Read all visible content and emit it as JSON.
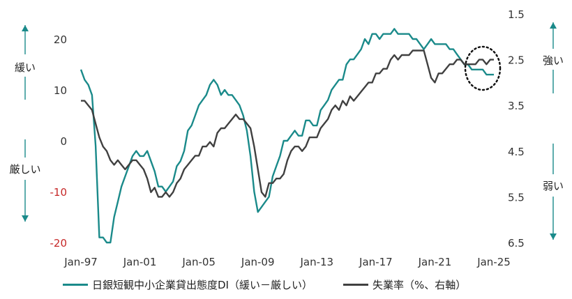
{
  "chart_data": {
    "type": "line",
    "x_ticks": [
      "Jan-97",
      "Jan-01",
      "Jan-05",
      "Jan-09",
      "Jan-13",
      "Jan-17",
      "Jan-21",
      "Jan-25"
    ],
    "left_axis": {
      "ylim": [
        -20,
        25
      ],
      "ticks": [
        "20",
        "10",
        "0",
        "-10",
        "-20"
      ]
    },
    "right_axis": {
      "ylim": [
        1.5,
        6.5
      ],
      "reversed": true,
      "ticks": [
        "1.5",
        "2.5",
        "3.5",
        "4.5",
        "5.5",
        "6.5"
      ]
    },
    "annotations": {
      "left_up": "緩い",
      "left_down": "厳しい",
      "right_up": "強い",
      "right_down": "弱い"
    },
    "highlight": "dotted-circle",
    "series": [
      {
        "name": "日銀短観中小企業貸出態度DI（緩い－厳しい）",
        "axis": "left",
        "color": "#1a8a8a",
        "x": [
          1997.0,
          1997.25,
          1997.5,
          1997.75,
          1998.0,
          1998.25,
          1998.5,
          1998.75,
          1999.0,
          1999.25,
          1999.5,
          1999.75,
          2000.0,
          2000.25,
          2000.5,
          2000.75,
          2001.0,
          2001.25,
          2001.5,
          2001.75,
          2002.0,
          2002.25,
          2002.5,
          2002.75,
          2003.0,
          2003.25,
          2003.5,
          2003.75,
          2004.0,
          2004.25,
          2004.5,
          2004.75,
          2005.0,
          2005.25,
          2005.5,
          2005.75,
          2006.0,
          2006.25,
          2006.5,
          2006.75,
          2007.0,
          2007.25,
          2007.5,
          2007.75,
          2008.0,
          2008.25,
          2008.5,
          2008.75,
          2009.0,
          2009.25,
          2009.5,
          2009.75,
          2010.0,
          2010.25,
          2010.5,
          2010.75,
          2011.0,
          2011.25,
          2011.5,
          2011.75,
          2012.0,
          2012.25,
          2012.5,
          2012.75,
          2013.0,
          2013.25,
          2013.5,
          2013.75,
          2014.0,
          2014.25,
          2014.5,
          2014.75,
          2015.0,
          2015.25,
          2015.5,
          2015.75,
          2016.0,
          2016.25,
          2016.5,
          2016.75,
          2017.0,
          2017.25,
          2017.5,
          2017.75,
          2018.0,
          2018.25,
          2018.5,
          2018.75,
          2019.0,
          2019.25,
          2019.5,
          2019.75,
          2020.0,
          2020.25,
          2020.5,
          2020.75,
          2021.0,
          2021.25,
          2021.5,
          2021.75,
          2022.0,
          2022.25,
          2022.5,
          2022.75,
          2023.0,
          2023.25,
          2023.5,
          2023.75,
          2024.0,
          2024.25,
          2024.5,
          2024.75,
          2025.0
        ],
        "values": [
          14,
          12,
          11,
          9,
          -1,
          -19,
          -19,
          -20,
          -20,
          -15,
          -12,
          -9,
          -7,
          -5,
          -3,
          -2,
          -3,
          -3,
          -2,
          -4,
          -6,
          -9,
          -9,
          -10,
          -9,
          -8,
          -5,
          -4,
          -2,
          2,
          3,
          5,
          7,
          8,
          9,
          11,
          12,
          11,
          9,
          10,
          9,
          9,
          8,
          7,
          5,
          2,
          -3,
          -10,
          -14,
          -13,
          -12,
          -11,
          -7,
          -5,
          -3,
          0,
          0,
          1,
          2,
          1,
          1,
          4,
          4,
          3,
          3,
          6,
          7,
          8,
          10,
          11,
          12,
          12,
          15,
          16,
          16,
          17,
          18,
          20,
          19,
          21,
          21,
          20,
          21,
          21,
          21,
          22,
          21,
          21,
          21,
          21,
          20,
          20,
          19,
          18,
          19,
          20,
          19,
          19,
          19,
          19,
          18,
          18,
          17,
          16,
          15,
          15,
          14,
          14,
          14,
          14,
          13,
          13,
          13
        ],
        "values_unit": "DI"
      },
      {
        "name": "失業率（%、右軸）",
        "axis": "right",
        "color": "#404040",
        "x": [
          1997.0,
          1997.25,
          1997.5,
          1997.75,
          1998.0,
          1998.25,
          1998.5,
          1998.75,
          1999.0,
          1999.25,
          1999.5,
          1999.75,
          2000.0,
          2000.25,
          2000.5,
          2000.75,
          2001.0,
          2001.25,
          2001.5,
          2001.75,
          2002.0,
          2002.25,
          2002.5,
          2002.75,
          2003.0,
          2003.25,
          2003.5,
          2003.75,
          2004.0,
          2004.25,
          2004.5,
          2004.75,
          2005.0,
          2005.25,
          2005.5,
          2005.75,
          2006.0,
          2006.25,
          2006.5,
          2006.75,
          2007.0,
          2007.25,
          2007.5,
          2007.75,
          2008.0,
          2008.25,
          2008.5,
          2008.75,
          2009.0,
          2009.25,
          2009.5,
          2009.75,
          2010.0,
          2010.25,
          2010.5,
          2010.75,
          2011.0,
          2011.25,
          2011.5,
          2011.75,
          2012.0,
          2012.25,
          2012.5,
          2012.75,
          2013.0,
          2013.25,
          2013.5,
          2013.75,
          2014.0,
          2014.25,
          2014.5,
          2014.75,
          2015.0,
          2015.25,
          2015.5,
          2015.75,
          2016.0,
          2016.25,
          2016.5,
          2016.75,
          2017.0,
          2017.25,
          2017.5,
          2017.75,
          2018.0,
          2018.25,
          2018.5,
          2018.75,
          2019.0,
          2019.25,
          2019.5,
          2019.75,
          2020.0,
          2020.25,
          2020.5,
          2020.75,
          2021.0,
          2021.25,
          2021.5,
          2021.75,
          2022.0,
          2022.25,
          2022.5,
          2022.75,
          2023.0,
          2023.25,
          2023.5,
          2023.75,
          2024.0,
          2024.25,
          2024.5,
          2024.75,
          2025.0
        ],
        "values": [
          3.4,
          3.4,
          3.5,
          3.6,
          3.9,
          4.2,
          4.4,
          4.5,
          4.7,
          4.8,
          4.7,
          4.8,
          4.9,
          4.8,
          4.7,
          4.7,
          4.8,
          4.9,
          5.1,
          5.4,
          5.3,
          5.5,
          5.5,
          5.4,
          5.5,
          5.4,
          5.2,
          5.1,
          4.9,
          4.8,
          4.7,
          4.6,
          4.6,
          4.4,
          4.4,
          4.3,
          4.4,
          4.1,
          4.0,
          4.0,
          3.9,
          3.8,
          3.7,
          3.8,
          3.8,
          3.9,
          4.0,
          4.4,
          4.9,
          5.4,
          5.5,
          5.2,
          5.2,
          5.1,
          5.1,
          5.0,
          4.7,
          4.5,
          4.4,
          4.4,
          4.5,
          4.4,
          4.2,
          4.2,
          4.2,
          4.0,
          3.9,
          3.8,
          3.6,
          3.5,
          3.6,
          3.4,
          3.5,
          3.3,
          3.4,
          3.3,
          3.2,
          3.1,
          3.0,
          3.0,
          2.8,
          2.8,
          2.7,
          2.7,
          2.5,
          2.4,
          2.5,
          2.4,
          2.4,
          2.4,
          2.3,
          2.3,
          2.3,
          2.3,
          2.6,
          2.9,
          3.0,
          2.8,
          2.8,
          2.7,
          2.6,
          2.6,
          2.5,
          2.5,
          2.6,
          2.6,
          2.6,
          2.6,
          2.5,
          2.5,
          2.6,
          2.5,
          2.5
        ],
        "values_unit": "%"
      }
    ]
  }
}
